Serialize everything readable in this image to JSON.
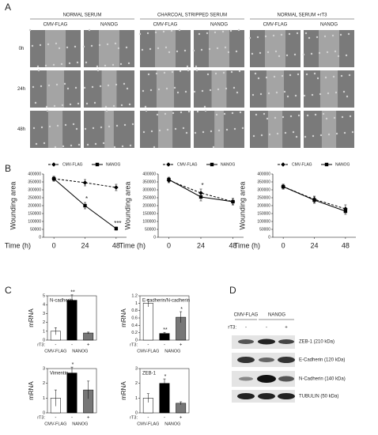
{
  "panel_labels": [
    "A",
    "B",
    "C",
    "D"
  ],
  "wound_assay": {
    "conditions": [
      {
        "name": "NORMAL SERUM",
        "columns": [
          "CMV-FLAG",
          "NANOG"
        ]
      },
      {
        "name": "CHARCOAL STRIPPED SERUM",
        "columns": [
          "CMV-FLAG",
          "NANOG"
        ]
      },
      {
        "name": "NORMAL SERUM +rT3",
        "columns": [
          "CMV-FLAG",
          "NANOG"
        ]
      }
    ],
    "timepoints": [
      "0h",
      "24h",
      "48h"
    ]
  },
  "chart_data": [
    {
      "type": "line",
      "ylabel": "Wounding area",
      "xlabel": "Time (h)",
      "x": [
        0,
        24,
        48
      ],
      "xlim": [
        -8,
        56
      ],
      "xticks": [
        0,
        24,
        48
      ],
      "ylim": [
        0,
        400000
      ],
      "yticks": [
        0,
        50000,
        100000,
        150000,
        200000,
        250000,
        300000,
        350000,
        400000
      ],
      "series": [
        {
          "name": "CMV-FLAG",
          "color": "#000000",
          "line_style": "dashed",
          "marker": "diamond",
          "values": [
            370000,
            345000,
            315000
          ],
          "errors": [
            15000,
            20000,
            20000
          ]
        },
        {
          "name": "NANOG",
          "color": "#000000",
          "line_style": "solid",
          "marker": "square",
          "values": [
            370000,
            200000,
            55000
          ],
          "errors": [
            15000,
            20000,
            10000
          ],
          "annotations": [
            null,
            "*",
            "***"
          ]
        }
      ]
    },
    {
      "type": "line",
      "ylabel": "Wounding area",
      "xlabel": "Time (h)",
      "x": [
        0,
        24,
        48
      ],
      "xlim": [
        -8,
        56
      ],
      "xticks": [
        0,
        24,
        48
      ],
      "ylim": [
        0,
        400000
      ],
      "yticks": [
        0,
        50000,
        100000,
        150000,
        200000,
        250000,
        300000,
        350000,
        400000
      ],
      "series": [
        {
          "name": "CMV-FLAG",
          "color": "#000000",
          "line_style": "dashed",
          "marker": "diamond",
          "values": [
            360000,
            280000,
            225000
          ],
          "errors": [
            15000,
            25000,
            20000
          ],
          "annotations": [
            null,
            "*",
            null
          ]
        },
        {
          "name": "NANOG",
          "color": "#000000",
          "line_style": "solid",
          "marker": "square",
          "values": [
            365000,
            255000,
            225000
          ],
          "errors": [
            15000,
            25000,
            20000
          ]
        }
      ]
    },
    {
      "type": "line",
      "ylabel": "Wounding area",
      "xlabel": "Time (h)",
      "x": [
        0,
        24,
        48
      ],
      "xlim": [
        -8,
        56
      ],
      "xticks": [
        0,
        24,
        48
      ],
      "ylim": [
        0,
        400000
      ],
      "yticks": [
        0,
        50000,
        100000,
        150000,
        200000,
        250000,
        300000,
        350000,
        400000
      ],
      "series": [
        {
          "name": "CMV-FLAG",
          "color": "#000000",
          "line_style": "dashed",
          "marker": "diamond",
          "values": [
            320000,
            240000,
            180000
          ],
          "errors": [
            15000,
            20000,
            25000
          ]
        },
        {
          "name": "NANOG",
          "color": "#000000",
          "line_style": "solid",
          "marker": "square",
          "values": [
            320000,
            235000,
            165000
          ],
          "errors": [
            15000,
            20000,
            20000
          ]
        }
      ]
    },
    {
      "type": "bar",
      "title": "N-cadherin",
      "ylabel": "mRNA",
      "x_prefix": "rT3:",
      "categories": [
        "-",
        "-",
        "+"
      ],
      "groups": [
        "CMV-FLAG",
        "NANOG"
      ],
      "values": [
        1,
        4.5,
        0.8
      ],
      "errors": [
        0.4,
        0.6,
        0.1
      ],
      "colors": [
        "#ffffff",
        "#000000",
        "#777777"
      ],
      "annotations": [
        null,
        "**",
        null
      ],
      "ylim": [
        0,
        5
      ],
      "yticks": [
        0,
        1,
        2,
        3,
        4,
        5
      ]
    },
    {
      "type": "bar",
      "title": "E-cadherin/N-cadherin",
      "ylabel": "mRNA",
      "x_prefix": "rT3:",
      "categories": [
        "-",
        "-",
        "+"
      ],
      "groups": [
        "CMV-FLAG",
        "NANOG"
      ],
      "values": [
        1,
        0.18,
        0.62
      ],
      "errors": [
        0.1,
        0.03,
        0.15
      ],
      "colors": [
        "#ffffff",
        "#000000",
        "#777777"
      ],
      "annotations": [
        null,
        "**",
        "*"
      ],
      "ylim": [
        0,
        1.2
      ],
      "yticks": [
        0,
        0.2,
        0.4,
        0.6,
        0.8,
        1,
        1.2
      ]
    },
    {
      "type": "bar",
      "title": "Vimentin",
      "ylabel": "mRNA",
      "x_prefix": "rT3:",
      "categories": [
        "-",
        "-",
        "+"
      ],
      "groups": [
        "CMV-FLAG",
        "NANOG"
      ],
      "values": [
        1,
        2.7,
        1.55
      ],
      "errors": [
        0.55,
        0.4,
        0.6
      ],
      "colors": [
        "#ffffff",
        "#000000",
        "#777777"
      ],
      "annotations": [
        null,
        "*",
        null
      ],
      "ylim": [
        0,
        3
      ],
      "yticks": [
        0,
        1,
        2,
        3
      ]
    },
    {
      "type": "bar",
      "title": "ZEB-1",
      "ylabel": "mRNA",
      "x_prefix": "rT3:",
      "categories": [
        "-",
        "-",
        "+"
      ],
      "groups": [
        "CMV-FLAG",
        "NANOG"
      ],
      "values": [
        1,
        2,
        0.65
      ],
      "errors": [
        0.3,
        0.3,
        0.1
      ],
      "colors": [
        "#ffffff",
        "#000000",
        "#777777"
      ],
      "annotations": [
        null,
        "*",
        null
      ],
      "ylim": [
        0,
        3
      ],
      "yticks": [
        0,
        1,
        2,
        3
      ]
    }
  ],
  "blot": {
    "groups": [
      "CMV-FLAG",
      "NANOG"
    ],
    "rt3_label": "rT3:",
    "lanes": [
      "-",
      "-",
      "+"
    ],
    "proteins": [
      "ZEB-1 (210 kDa)",
      "E-Cadherin (120 kDa)",
      "N-Cadherin (140 kDa)",
      "TUBULIN (50 kDa)"
    ]
  }
}
